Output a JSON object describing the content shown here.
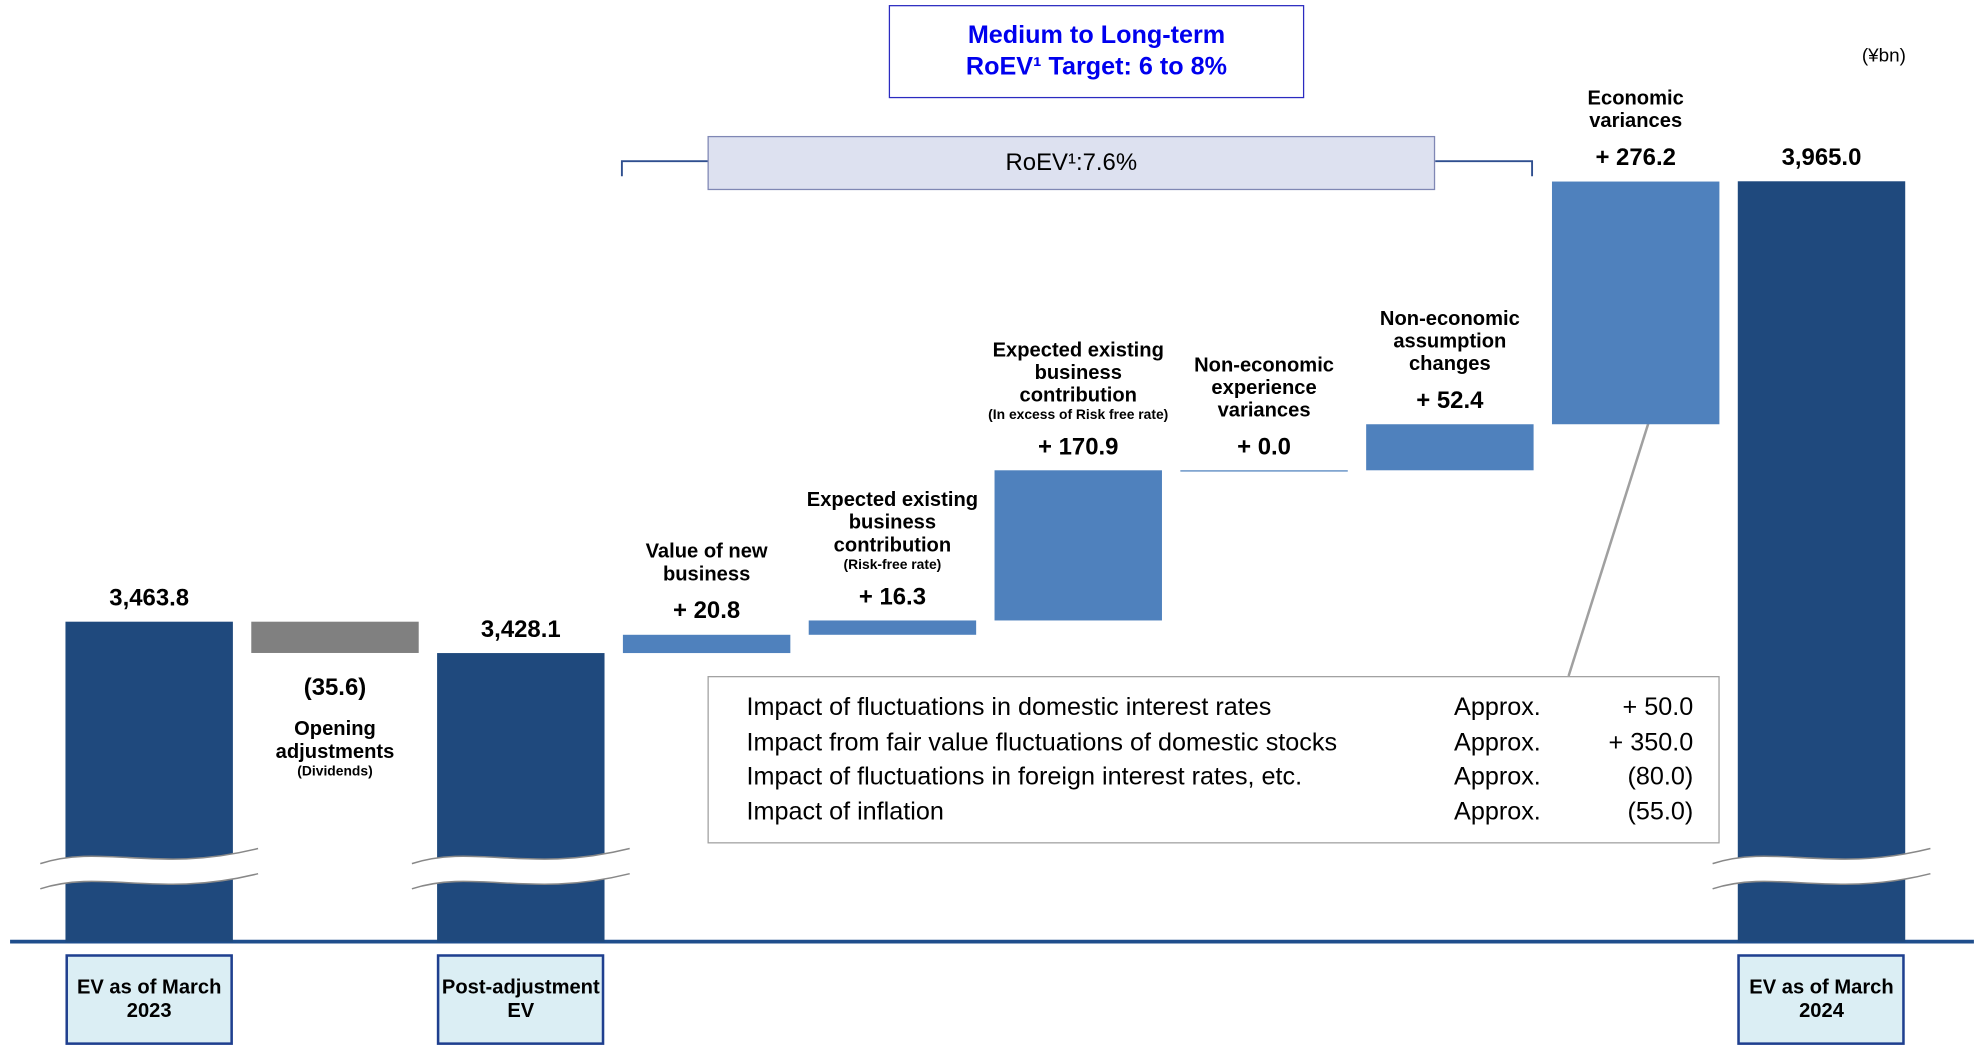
{
  "chart_data": {
    "type": "waterfall",
    "unit": "(¥bn)",
    "target": "Medium to Long-term RoEV¹ Target: 6 to 8%",
    "roev": "RoEV¹:7.6%",
    "categories": [
      "EV as of March 2023",
      "Opening adjustments",
      "Post-adjustment EV",
      "Value of new business",
      "Expected existing business contribution",
      "Expected existing business contribution",
      "Non-economic experience variances",
      "Non-economic assumption changes",
      "Economic variances",
      "EV as of March 2024"
    ],
    "category_notes": [
      null,
      "(Dividends)",
      null,
      null,
      "(Risk-free rate)",
      "(In excess of Risk free rate)",
      null,
      null,
      null,
      null
    ],
    "measures": [
      "absolute",
      "relative",
      "total",
      "relative",
      "relative",
      "relative",
      "relative",
      "relative",
      "relative",
      "total"
    ],
    "values": [
      3463.8,
      -35.6,
      3428.1,
      20.8,
      16.3,
      170.9,
      0.0,
      52.4,
      276.2,
      3965.0
    ],
    "value_labels": [
      "3,463.8",
      "(35.6)",
      "3,428.1",
      "+ 20.8",
      "+ 16.3",
      "+ 170.9",
      "+ 0.0",
      "+ 52.4",
      "+ 276.2",
      "3,965.0"
    ],
    "colors": {
      "total": "#1f497d",
      "increase": "#4f81bd",
      "decrease": "#808080"
    },
    "breakdown": {
      "rows": [
        [
          "Impact of fluctuations in domestic interest rates",
          "Approx.",
          "+ 50.0"
        ],
        [
          "Impact from fair value fluctuations of domestic stocks",
          "Approx.",
          "+ 350.0"
        ],
        [
          "Impact of fluctuations in foreign interest rates, etc.",
          "Approx.",
          "(80.0)"
        ],
        [
          "Impact of inflation",
          "Approx.",
          "(55.0)"
        ]
      ]
    }
  }
}
